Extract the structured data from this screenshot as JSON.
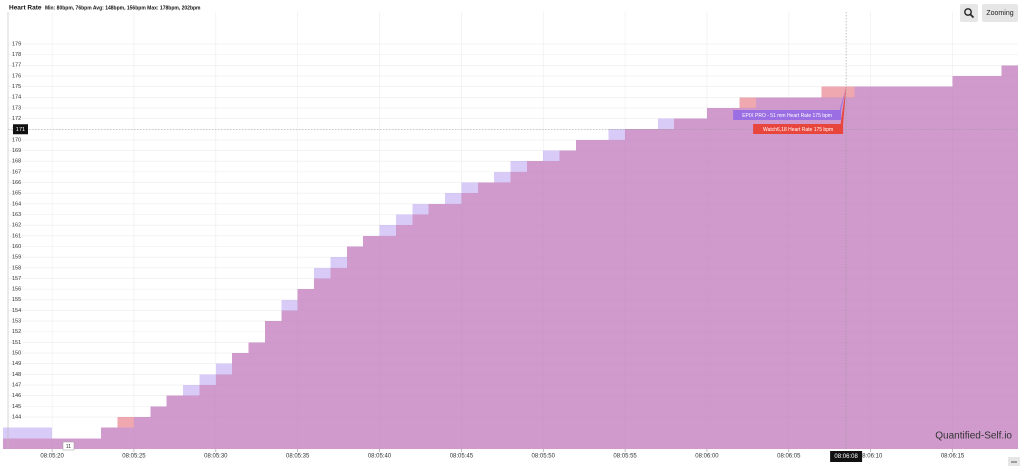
{
  "chart_data": {
    "type": "step-area",
    "title": "Heart Rate",
    "subtitle": "Min: 80bpm, 76bpm Avg: 148bpm, 156bpm Max: 178bpm, 202bpm",
    "x": [
      "08:05:17",
      "08:05:18",
      "08:05:19",
      "08:05:20",
      "08:05:21",
      "08:05:22",
      "08:05:23",
      "08:05:24",
      "08:05:25",
      "08:05:26",
      "08:05:27",
      "08:05:28",
      "08:05:29",
      "08:05:30",
      "08:05:31",
      "08:05:32",
      "08:05:33",
      "08:05:34",
      "08:05:35",
      "08:05:36",
      "08:05:37",
      "08:05:38",
      "08:05:39",
      "08:05:40",
      "08:05:41",
      "08:05:42",
      "08:05:43",
      "08:05:44",
      "08:05:45",
      "08:05:46",
      "08:05:47",
      "08:05:48",
      "08:05:49",
      "08:05:50",
      "08:05:51",
      "08:05:52",
      "08:05:53",
      "08:05:54",
      "08:05:55",
      "08:05:56",
      "08:05:57",
      "08:05:58",
      "08:05:59",
      "08:06:00",
      "08:06:01",
      "08:06:02",
      "08:06:03",
      "08:06:04",
      "08:06:05",
      "08:06:06",
      "08:06:07",
      "08:06:08",
      "08:06:09",
      "08:06:10",
      "08:06:11",
      "08:06:12",
      "08:06:13",
      "08:06:14",
      "08:06:15",
      "08:06:16",
      "08:06:17",
      "08:06:18"
    ],
    "series": [
      {
        "color": "#e15161",
        "opacity": 0.5,
        "values": [
          142,
          142,
          142,
          142,
          142,
          142,
          143,
          144,
          144,
          145,
          146,
          146,
          147,
          148,
          150,
          151,
          153,
          154,
          156,
          157,
          158,
          160,
          161,
          161,
          162,
          163,
          164,
          164,
          165,
          166,
          166,
          167,
          168,
          168,
          169,
          170,
          170,
          170,
          171,
          171,
          171,
          172,
          172,
          173,
          173,
          174,
          174,
          174,
          174,
          174,
          175,
          175,
          175,
          175,
          175,
          175,
          175,
          175,
          176,
          176,
          176,
          177
        ]
      },
      {
        "color": "#a98cf0",
        "opacity": 0.45,
        "values": [
          143,
          143,
          143,
          142,
          142,
          142,
          143,
          143,
          144,
          145,
          146,
          147,
          148,
          149,
          150,
          151,
          153,
          155,
          156,
          158,
          159,
          160,
          161,
          162,
          163,
          164,
          164,
          165,
          166,
          166,
          167,
          168,
          168,
          169,
          169,
          170,
          170,
          171,
          171,
          171,
          172,
          172,
          172,
          173,
          173,
          173,
          174,
          174,
          174,
          174,
          174,
          174,
          175,
          175,
          175,
          175,
          175,
          175,
          176,
          176,
          176,
          177
        ]
      }
    ],
    "xlim": [
      "08:05:17",
      "08:06:19"
    ],
    "xticks": [
      "08:05:20",
      "08:05:25",
      "08:05:30",
      "08:05:35",
      "08:05:40",
      "08:05:45",
      "08:05:50",
      "08:05:55",
      "08:06:00",
      "08:06:05",
      "08:06:10",
      "08:06:15"
    ],
    "ylim": [
      141,
      182
    ],
    "yticks": [
      144,
      145,
      146,
      147,
      148,
      149,
      150,
      151,
      152,
      153,
      154,
      155,
      156,
      157,
      158,
      159,
      160,
      161,
      162,
      163,
      164,
      165,
      166,
      167,
      168,
      169,
      170,
      171,
      172,
      173,
      174,
      175,
      176,
      177,
      178,
      179
    ],
    "grid": true,
    "tooltip": {
      "x": "08:06:08",
      "y": 171,
      "items": [
        {
          "text": "EPIX PRO - 51 mm Heart Rate 175 bpm",
          "color": "#9b6fe3"
        },
        {
          "text": "Watch6,18 Heart Rate 175 bpm",
          "color": "#e8453c"
        }
      ]
    },
    "cursor_label": "11",
    "watermark": "Quantified-Self.io",
    "buttons": [
      "Zooming"
    ]
  }
}
